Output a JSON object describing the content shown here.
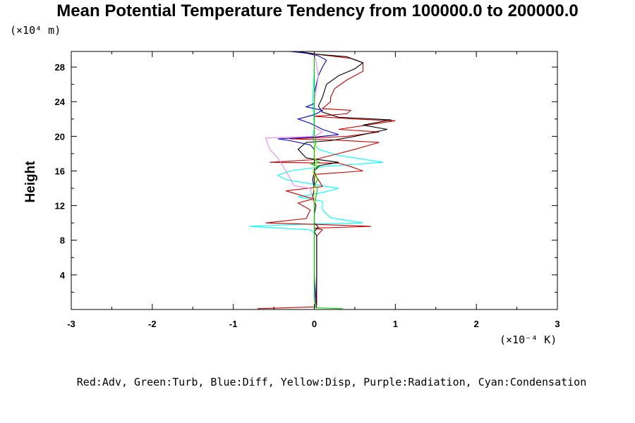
{
  "chart_data": {
    "type": "line",
    "title": "Mean Potential Temperature Tendency from 100000.0 to 200000.0",
    "ylabel": "Height",
    "y_unit_label": "(×10⁴ m)",
    "x_unit_label": "(×10⁻⁴ K)",
    "xlim": [
      -3,
      3
    ],
    "ylim": [
      0,
      29.8
    ],
    "x_ticks": [
      -3,
      -2,
      -1,
      0,
      1,
      2,
      3
    ],
    "y_ticks": [
      4,
      8,
      12,
      16,
      20,
      24,
      28
    ],
    "grid": false,
    "legend_text": "Red:Adv, Green:Turb, Blue:Diff, Yellow:Disp, Purple:Radiation, Cyan:Condensation",
    "series": [
      {
        "color": "#00ffff",
        "points": [
          [
            0,
            0.3
          ],
          [
            0.02,
            0.8
          ],
          [
            0.0,
            4.0
          ],
          [
            0.0,
            8.8
          ],
          [
            -0.05,
            9.2
          ],
          [
            -0.8,
            9.6
          ],
          [
            -0.3,
            9.8
          ],
          [
            0.6,
            10.0
          ],
          [
            0.2,
            10.6
          ],
          [
            0.1,
            11.5
          ],
          [
            0.1,
            12.5
          ],
          [
            -0.2,
            13.0
          ],
          [
            0.1,
            13.5
          ],
          [
            0.3,
            14.0
          ],
          [
            0.1,
            14.3
          ],
          [
            -0.35,
            15.0
          ],
          [
            -0.45,
            15.5
          ],
          [
            -0.3,
            16.0
          ],
          [
            0.1,
            16.5
          ],
          [
            0.85,
            17.0
          ],
          [
            0.3,
            17.8
          ],
          [
            0.05,
            18.5
          ],
          [
            0.0,
            19.2
          ],
          [
            -0.02,
            20.0
          ],
          [
            0.0,
            21.0
          ],
          [
            -0.02,
            24.0
          ],
          [
            0.0,
            28.0
          ],
          [
            0.0,
            29.8
          ]
        ]
      },
      {
        "color": "#cc0000",
        "points": [
          [
            -0.7,
            0.1
          ],
          [
            0.0,
            0.3
          ],
          [
            0.03,
            0.5
          ],
          [
            0.03,
            4.0
          ],
          [
            0.03,
            8.5
          ],
          [
            0.1,
            9.2
          ],
          [
            0.0,
            9.4
          ],
          [
            0.7,
            9.6
          ],
          [
            0.1,
            9.8
          ],
          [
            -0.6,
            10.0
          ],
          [
            -0.1,
            10.5
          ],
          [
            -0.05,
            11.5
          ],
          [
            -0.2,
            12.3
          ],
          [
            0.0,
            12.8
          ],
          [
            -0.1,
            13.0
          ],
          [
            -0.35,
            13.7
          ],
          [
            0.1,
            14.2
          ],
          [
            0.05,
            15.0
          ],
          [
            0.0,
            15.6
          ],
          [
            0.6,
            16.0
          ],
          [
            0.45,
            16.5
          ],
          [
            0.3,
            16.9
          ],
          [
            -0.55,
            17.0
          ],
          [
            0.0,
            17.3
          ],
          [
            0.3,
            18.0
          ],
          [
            0.5,
            18.5
          ],
          [
            0.8,
            19.3
          ],
          [
            0.2,
            19.6
          ],
          [
            -0.3,
            19.7
          ],
          [
            0.4,
            20.0
          ],
          [
            0.8,
            20.5
          ],
          [
            0.3,
            20.8
          ],
          [
            1.0,
            21.8
          ],
          [
            0.5,
            22.0
          ],
          [
            0.0,
            22.3
          ],
          [
            0.4,
            22.6
          ],
          [
            0.45,
            23.0
          ],
          [
            0.1,
            23.2
          ],
          [
            0.2,
            24.0
          ],
          [
            0.2,
            24.5
          ],
          [
            0.25,
            25.5
          ],
          [
            0.4,
            26.5
          ],
          [
            0.6,
            27.5
          ],
          [
            0.6,
            28.5
          ],
          [
            0.45,
            29.0
          ],
          [
            0.1,
            29.4
          ],
          [
            -0.2,
            29.8
          ]
        ]
      },
      {
        "color": "#000000",
        "points": [
          [
            0.03,
            0.2
          ],
          [
            0.02,
            0.5
          ],
          [
            0.03,
            4.0
          ],
          [
            0.03,
            8.5
          ],
          [
            0.0,
            9.0
          ],
          [
            0.05,
            9.5
          ],
          [
            0.0,
            10.0
          ],
          [
            0.0,
            11.0
          ],
          [
            0.02,
            12.0
          ],
          [
            -0.02,
            13.0
          ],
          [
            0.0,
            14.0
          ],
          [
            -0.02,
            15.0
          ],
          [
            0.0,
            16.0
          ],
          [
            0.05,
            16.6
          ],
          [
            0.3,
            17.0
          ],
          [
            -0.1,
            17.5
          ],
          [
            -0.2,
            18.5
          ],
          [
            -0.1,
            19.3
          ],
          [
            0.2,
            19.5
          ],
          [
            0.5,
            20.0
          ],
          [
            0.9,
            20.8
          ],
          [
            0.6,
            21.3
          ],
          [
            0.95,
            21.9
          ],
          [
            0.3,
            22.2
          ],
          [
            0.1,
            22.8
          ],
          [
            0.05,
            23.5
          ],
          [
            0.1,
            24.5
          ],
          [
            0.15,
            26.0
          ],
          [
            0.3,
            27.0
          ],
          [
            0.5,
            27.8
          ],
          [
            0.6,
            28.5
          ],
          [
            0.4,
            29.2
          ],
          [
            0.0,
            29.5
          ],
          [
            -0.2,
            29.8
          ]
        ]
      },
      {
        "color": "#0000cc",
        "points": [
          [
            0,
            0.3
          ],
          [
            0.02,
            0.5
          ],
          [
            0.0,
            4.0
          ],
          [
            0.0,
            8.8
          ],
          [
            0.0,
            9.8
          ],
          [
            0.0,
            12.0
          ],
          [
            0.0,
            16.0
          ],
          [
            0.0,
            18.5
          ],
          [
            -0.05,
            19.0
          ],
          [
            -0.3,
            19.5
          ],
          [
            -0.45,
            19.7
          ],
          [
            0.0,
            19.9
          ],
          [
            0.3,
            20.2
          ],
          [
            0.1,
            20.8
          ],
          [
            -0.05,
            21.5
          ],
          [
            -0.2,
            22.0
          ],
          [
            0.0,
            22.5
          ],
          [
            0.1,
            23.0
          ],
          [
            -0.1,
            23.4
          ],
          [
            0.0,
            23.8
          ],
          [
            0.0,
            25.0
          ],
          [
            0.05,
            27.0
          ],
          [
            0.1,
            28.0
          ],
          [
            0.15,
            28.8
          ],
          [
            0.05,
            29.3
          ],
          [
            -0.1,
            29.6
          ],
          [
            -0.3,
            29.8
          ]
        ]
      },
      {
        "color": "#ee88ee",
        "points": [
          [
            0,
            0.3
          ],
          [
            0.0,
            4.0
          ],
          [
            0.0,
            12.0
          ],
          [
            -0.05,
            14.0
          ],
          [
            -0.25,
            14.3
          ],
          [
            -0.35,
            16.0
          ],
          [
            -0.45,
            17.5
          ],
          [
            -0.55,
            18.5
          ],
          [
            -0.6,
            19.8
          ],
          [
            -0.3,
            19.9
          ],
          [
            0.0,
            20.0
          ],
          [
            0.1,
            20.5
          ],
          [
            0.0,
            21.0
          ],
          [
            0.0,
            24.0
          ],
          [
            0.05,
            27.0
          ],
          [
            0.0,
            29.8
          ]
        ]
      },
      {
        "color": "#ffee00",
        "points": [
          [
            0,
            0.3
          ],
          [
            0.0,
            8.8
          ],
          [
            0.0,
            12.0
          ],
          [
            0.0,
            14.0
          ],
          [
            0.02,
            15.0
          ],
          [
            -0.02,
            16.0
          ],
          [
            0.02,
            17.0
          ],
          [
            0.0,
            18.0
          ],
          [
            0.02,
            19.0
          ],
          [
            0.0,
            20.0
          ],
          [
            0.0,
            24.0
          ],
          [
            0.0,
            29.8
          ]
        ]
      },
      {
        "color": "#00cc00",
        "points": [
          [
            0.35,
            0.1
          ],
          [
            0.0,
            0.2
          ],
          [
            0.02,
            0.5
          ],
          [
            0.0,
            1.0
          ],
          [
            0.0,
            8.8
          ],
          [
            0.0,
            12.0
          ],
          [
            0.04,
            14.0
          ],
          [
            0.0,
            14.3
          ],
          [
            0.04,
            15.0
          ],
          [
            0.0,
            16.0
          ],
          [
            0.06,
            16.5
          ],
          [
            -0.04,
            16.8
          ],
          [
            0.06,
            17.0
          ],
          [
            0.0,
            17.3
          ],
          [
            0.0,
            18.8
          ],
          [
            0.02,
            19.3
          ],
          [
            0.0,
            20.0
          ],
          [
            0.0,
            24.0
          ],
          [
            0.0,
            29.8
          ]
        ]
      }
    ]
  }
}
